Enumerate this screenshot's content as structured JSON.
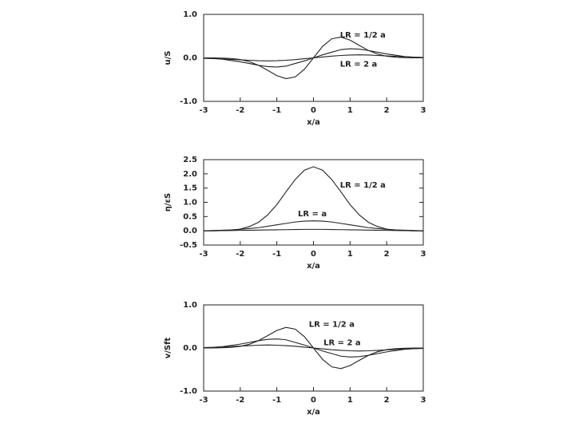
{
  "chart_data": [
    {
      "type": "line",
      "x_label": "x/a",
      "y_label": "u/S",
      "x": [
        -3,
        -2.75,
        -2.5,
        -2.25,
        -2,
        -1.75,
        -1.5,
        -1.25,
        -1,
        -0.75,
        -0.5,
        -0.25,
        0,
        0.25,
        0.5,
        0.75,
        1,
        1.25,
        1.5,
        1.75,
        2,
        2.25,
        2.5,
        2.75,
        3
      ],
      "series": [
        {
          "color": "#222",
          "values": [
            0,
            -0.001,
            -0.005,
            -0.014,
            -0.038,
            -0.087,
            -0.171,
            -0.287,
            -0.408,
            -0.478,
            -0.438,
            -0.265,
            0,
            0.265,
            0.438,
            0.478,
            0.408,
            0.287,
            0.171,
            0.087,
            0.038,
            0.014,
            0.005,
            0.001,
            0
          ]
        },
        {
          "color": "#222",
          "values": [
            -0.005,
            -0.015,
            -0.03,
            -0.06,
            -0.09,
            -0.13,
            -0.17,
            -0.2,
            -0.21,
            -0.19,
            -0.13,
            -0.07,
            0,
            0.07,
            0.13,
            0.19,
            0.21,
            0.2,
            0.17,
            0.13,
            0.09,
            0.06,
            0.03,
            0.015,
            0.005
          ]
        },
        {
          "color": "#222",
          "values": [
            -0.01,
            -0.015,
            -0.025,
            -0.035,
            -0.045,
            -0.055,
            -0.065,
            -0.07,
            -0.065,
            -0.055,
            -0.04,
            -0.02,
            0,
            0.02,
            0.04,
            0.055,
            0.065,
            0.07,
            0.065,
            0.055,
            0.045,
            0.035,
            0.025,
            0.015,
            0.01
          ]
        }
      ],
      "annotations": [
        "LR = 1/2 a",
        "LR = 2 a"
      ],
      "xlim": [
        -3,
        3
      ],
      "xticks": [
        -3,
        -2,
        -1,
        0,
        1,
        2,
        3
      ],
      "ylim": [
        -1,
        1
      ],
      "yticks": [
        {
          "value": -1,
          "label": "-1.0"
        },
        {
          "value": 0,
          "label": "0.0"
        },
        {
          "value": 1,
          "label": "1.0"
        }
      ]
    },
    {
      "type": "line",
      "x_label": "x/a",
      "y_label": "η/εS",
      "x": [
        -3,
        -2.75,
        -2.5,
        -2.25,
        -2,
        -1.75,
        -1.5,
        -1.25,
        -1,
        -0.75,
        -0.5,
        -0.25,
        0,
        0.25,
        0.5,
        0.75,
        1,
        1.25,
        1.5,
        1.75,
        2,
        2.25,
        2.5,
        2.75,
        3
      ],
      "series": [
        {
          "color": "#222",
          "values": [
            0,
            0,
            0.01,
            0.025,
            0.06,
            0.15,
            0.3,
            0.56,
            0.92,
            1.37,
            1.8,
            2.13,
            2.25,
            2.13,
            1.8,
            1.37,
            0.92,
            0.56,
            0.3,
            0.15,
            0.06,
            0.025,
            0.01,
            0,
            0
          ]
        },
        {
          "color": "#222",
          "values": [
            0,
            0.01,
            0.02,
            0.03,
            0.05,
            0.08,
            0.11,
            0.16,
            0.21,
            0.26,
            0.31,
            0.34,
            0.35,
            0.34,
            0.31,
            0.26,
            0.21,
            0.16,
            0.11,
            0.08,
            0.05,
            0.03,
            0.02,
            0.01,
            0
          ]
        },
        {
          "color": "#222",
          "values": [
            0,
            0,
            0.005,
            0.01,
            0.015,
            0.02,
            0.025,
            0.03,
            0.035,
            0.04,
            0.045,
            0.05,
            0.05,
            0.05,
            0.045,
            0.04,
            0.035,
            0.03,
            0.025,
            0.02,
            0.015,
            0.01,
            0.005,
            0,
            0
          ]
        }
      ],
      "annotations": [
        "LR = 1/2 a",
        "LR = a"
      ],
      "xlim": [
        -3,
        3
      ],
      "xticks": [
        -3,
        -2,
        -1,
        0,
        1,
        2,
        3
      ],
      "ylim": [
        -0.5,
        2.5
      ],
      "yticks": [
        -0.5,
        {
          "value": 0,
          "label": "0.0"
        },
        0.5,
        {
          "value": 1,
          "label": "1.0"
        },
        1.5,
        {
          "value": 2,
          "label": "2.0"
        },
        2.5
      ]
    },
    {
      "type": "line",
      "x_label": "x/a",
      "y_label": "v/Sft",
      "x": [
        -3,
        -2.75,
        -2.5,
        -2.25,
        -2,
        -1.75,
        -1.5,
        -1.25,
        -1,
        -0.75,
        -0.5,
        -0.25,
        0,
        0.25,
        0.5,
        0.75,
        1,
        1.25,
        1.5,
        1.75,
        2,
        2.25,
        2.5,
        2.75,
        3
      ],
      "series": [
        {
          "color": "#222",
          "values": [
            0,
            0.001,
            0.005,
            0.014,
            0.038,
            0.087,
            0.171,
            0.287,
            0.408,
            0.478,
            0.438,
            0.265,
            0,
            -0.265,
            -0.438,
            -0.478,
            -0.408,
            -0.287,
            -0.171,
            -0.087,
            -0.038,
            -0.014,
            -0.005,
            -0.001,
            0
          ]
        },
        {
          "color": "#222",
          "values": [
            0.005,
            0.015,
            0.03,
            0.06,
            0.09,
            0.13,
            0.17,
            0.2,
            0.21,
            0.19,
            0.13,
            0.07,
            0,
            -0.07,
            -0.13,
            -0.19,
            -0.21,
            -0.2,
            -0.17,
            -0.13,
            -0.09,
            -0.06,
            -0.03,
            -0.015,
            -0.005
          ]
        },
        {
          "color": "#222",
          "values": [
            0.01,
            0.015,
            0.025,
            0.035,
            0.045,
            0.055,
            0.065,
            0.07,
            0.065,
            0.055,
            0.04,
            0.02,
            0,
            -0.02,
            -0.04,
            -0.055,
            -0.065,
            -0.07,
            -0.065,
            -0.055,
            -0.045,
            -0.035,
            -0.025,
            -0.015,
            -0.01
          ]
        }
      ],
      "annotations": [
        "LR = 1/2 a",
        "LR = 2 a"
      ],
      "xlim": [
        -3,
        3
      ],
      "xticks": [
        -3,
        -2,
        -1,
        0,
        1,
        2,
        3
      ],
      "ylim": [
        -1,
        1
      ],
      "yticks": [
        {
          "value": -1,
          "label": "-1.0"
        },
        {
          "value": 0,
          "label": "0.0"
        },
        {
          "value": 1,
          "label": "1.0"
        }
      ]
    }
  ]
}
